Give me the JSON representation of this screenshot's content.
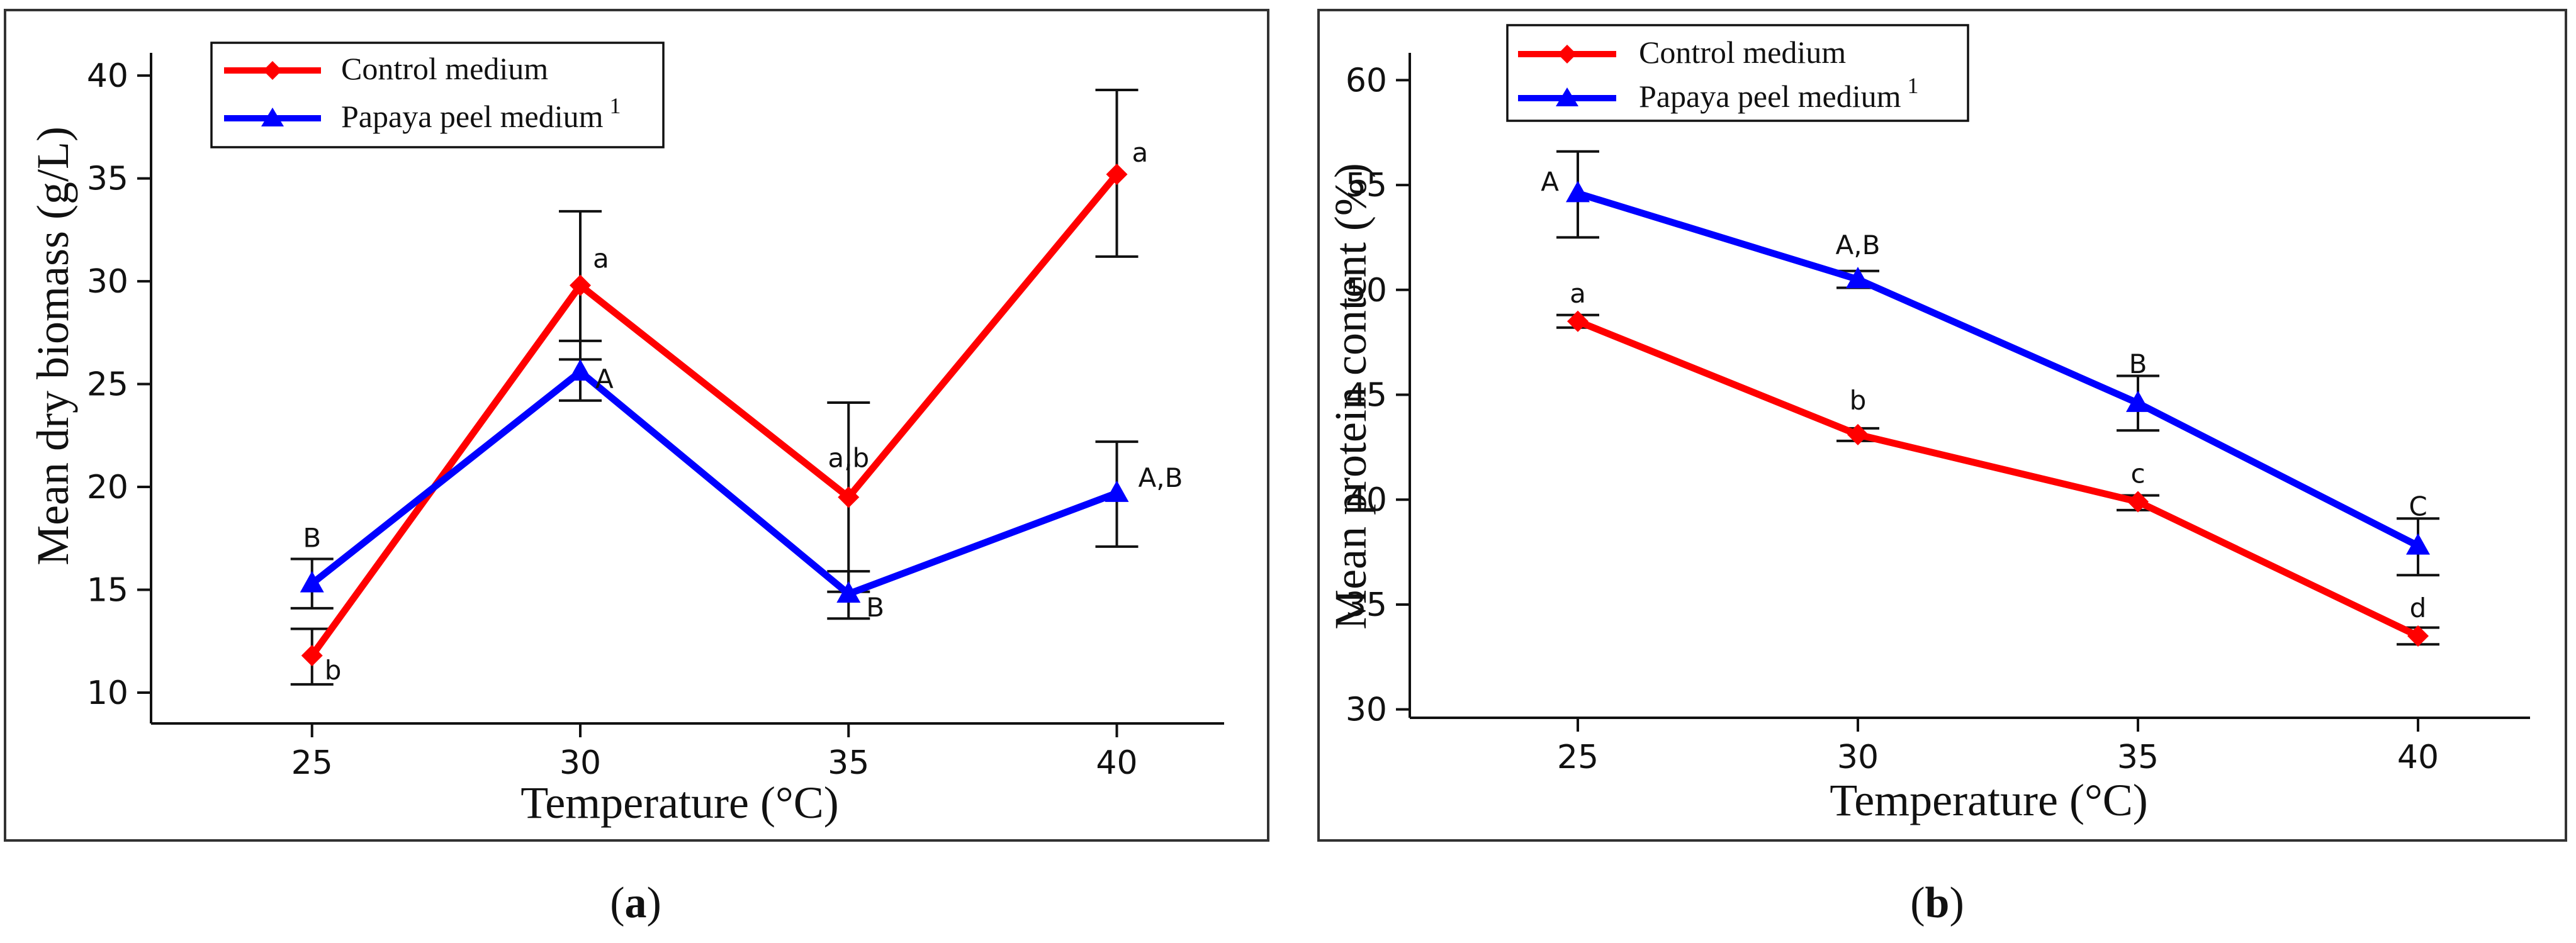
{
  "colors": {
    "control": "#ff0000",
    "papaya": "#0000ff",
    "axis": "#111111",
    "error": "#111111"
  },
  "legend": {
    "control_label": "Control medium",
    "papaya_label": "Papaya peel medium",
    "papaya_superscript": "1"
  },
  "panel_labels": {
    "a": {
      "open": "(",
      "letter": "a",
      "close": ")"
    },
    "b": {
      "open": "(",
      "letter": "b",
      "close": ")"
    }
  },
  "chart_data": [
    {
      "type": "line",
      "panel": "a",
      "title": "",
      "xlabel": "Temperature (°C)",
      "ylabel": "Mean dry biomass (g/L)",
      "x": [
        25,
        30,
        35,
        40
      ],
      "xlim": [
        22,
        42
      ],
      "ylim": [
        8.5,
        40.8
      ],
      "yticks": [
        10,
        15,
        20,
        25,
        30,
        35,
        40
      ],
      "grid": false,
      "legend_position": "top-left",
      "series": [
        {
          "name": "Control medium",
          "marker": "diamond",
          "values": [
            11.8,
            29.8,
            19.5,
            35.2
          ],
          "err_low": [
            10.4,
            26.2,
            14.9,
            31.2
          ],
          "err_high": [
            13.1,
            33.4,
            24.1,
            39.3
          ],
          "labels": [
            "b",
            "a",
            "a,b",
            "a"
          ]
        },
        {
          "name": "Papaya peel medium",
          "marker": "triangle",
          "values": [
            15.3,
            25.6,
            14.8,
            19.7
          ],
          "err_low": [
            14.1,
            24.2,
            13.6,
            17.1
          ],
          "err_high": [
            16.5,
            27.1,
            15.9,
            22.2
          ],
          "labels": [
            "B",
            "A",
            "B",
            "A,B"
          ]
        }
      ]
    },
    {
      "type": "line",
      "panel": "b",
      "title": "",
      "xlabel": "Temperature (°C)",
      "ylabel": "Mean protein content (%)",
      "x": [
        25,
        30,
        35,
        40
      ],
      "xlim": [
        22,
        42
      ],
      "ylim": [
        29.6,
        61
      ],
      "yticks": [
        30,
        35,
        40,
        45,
        50,
        55,
        60
      ],
      "grid": false,
      "legend_position": "top-left",
      "series": [
        {
          "name": "Control medium",
          "marker": "diamond",
          "values": [
            48.5,
            43.1,
            39.9,
            33.5
          ],
          "err_low": [
            48.2,
            42.8,
            39.5,
            33.1
          ],
          "err_high": [
            48.8,
            43.4,
            40.2,
            33.9
          ],
          "labels": [
            "a",
            "b",
            "c",
            "d"
          ]
        },
        {
          "name": "Papaya peel medium",
          "marker": "triangle",
          "values": [
            54.6,
            50.5,
            44.6,
            37.8
          ],
          "err_low": [
            52.5,
            50.1,
            43.3,
            36.4
          ],
          "err_high": [
            56.6,
            50.9,
            45.9,
            39.1
          ],
          "labels": [
            "A",
            "A,B",
            "B",
            "C"
          ]
        }
      ]
    }
  ]
}
